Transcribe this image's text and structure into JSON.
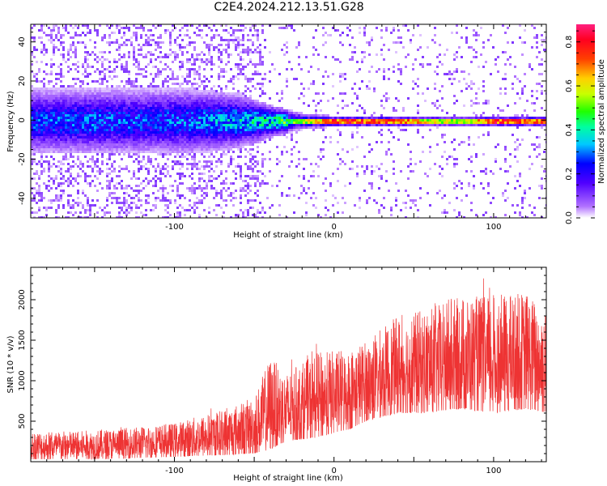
{
  "title": "C2E4.2024.212.13.51.G28",
  "chart_data": [
    {
      "type": "heatmap",
      "xlabel": "Height of straight line (km)",
      "ylabel": "Frequency (Hz)",
      "xlim": [
        -190,
        133
      ],
      "ylim": [
        -50,
        49
      ],
      "xticks": [
        -100,
        0,
        100
      ],
      "yticks": [
        -40,
        -20,
        0,
        20,
        40
      ],
      "colorbar": {
        "label": "Normalized spectral amplitude",
        "range": [
          0.0,
          0.88
        ],
        "ticks": [
          0.0,
          0.2,
          0.4,
          0.6,
          0.8
        ],
        "colormap": "rainbow (white-violet-blue-cyan-green-yellow-orange-red-pink)"
      },
      "description_points": {
        "x": [
          -180,
          -150,
          -120,
          -90,
          -60,
          -40,
          -20,
          0,
          20,
          40,
          60,
          80,
          100,
          120
        ],
        "band_halfwidth_hz": [
          12,
          12,
          12,
          12,
          10,
          6,
          3,
          2,
          2,
          2,
          2,
          2,
          2,
          2
        ],
        "band_peak_amplitude": [
          0.3,
          0.32,
          0.3,
          0.32,
          0.38,
          0.45,
          0.6,
          0.8,
          0.82,
          0.78,
          0.62,
          0.6,
          0.82,
          0.8
        ]
      },
      "grid": false
    },
    {
      "type": "line",
      "xlabel": "Height of straight line (km)",
      "ylabel": "SNR (10 * v/v)",
      "xlim": [
        -190,
        133
      ],
      "ylim": [
        0,
        2400
      ],
      "xticks": [
        -100,
        0,
        100
      ],
      "yticks": [
        500,
        1000,
        1500,
        2000
      ],
      "color": "#ee3333",
      "envelope": {
        "x": [
          -190,
          -160,
          -130,
          -100,
          -70,
          -50,
          -40,
          -30,
          -10,
          10,
          20,
          40,
          60,
          80,
          100,
          120,
          133
        ],
        "low": [
          30,
          30,
          40,
          60,
          80,
          100,
          150,
          250,
          300,
          400,
          500,
          600,
          600,
          650,
          600,
          650,
          600
        ],
        "high": [
          380,
          380,
          420,
          480,
          650,
          800,
          1300,
          1100,
          1350,
          1400,
          1500,
          1800,
          1900,
          2050,
          2050,
          2100,
          1900
        ]
      },
      "grid": false
    }
  ]
}
